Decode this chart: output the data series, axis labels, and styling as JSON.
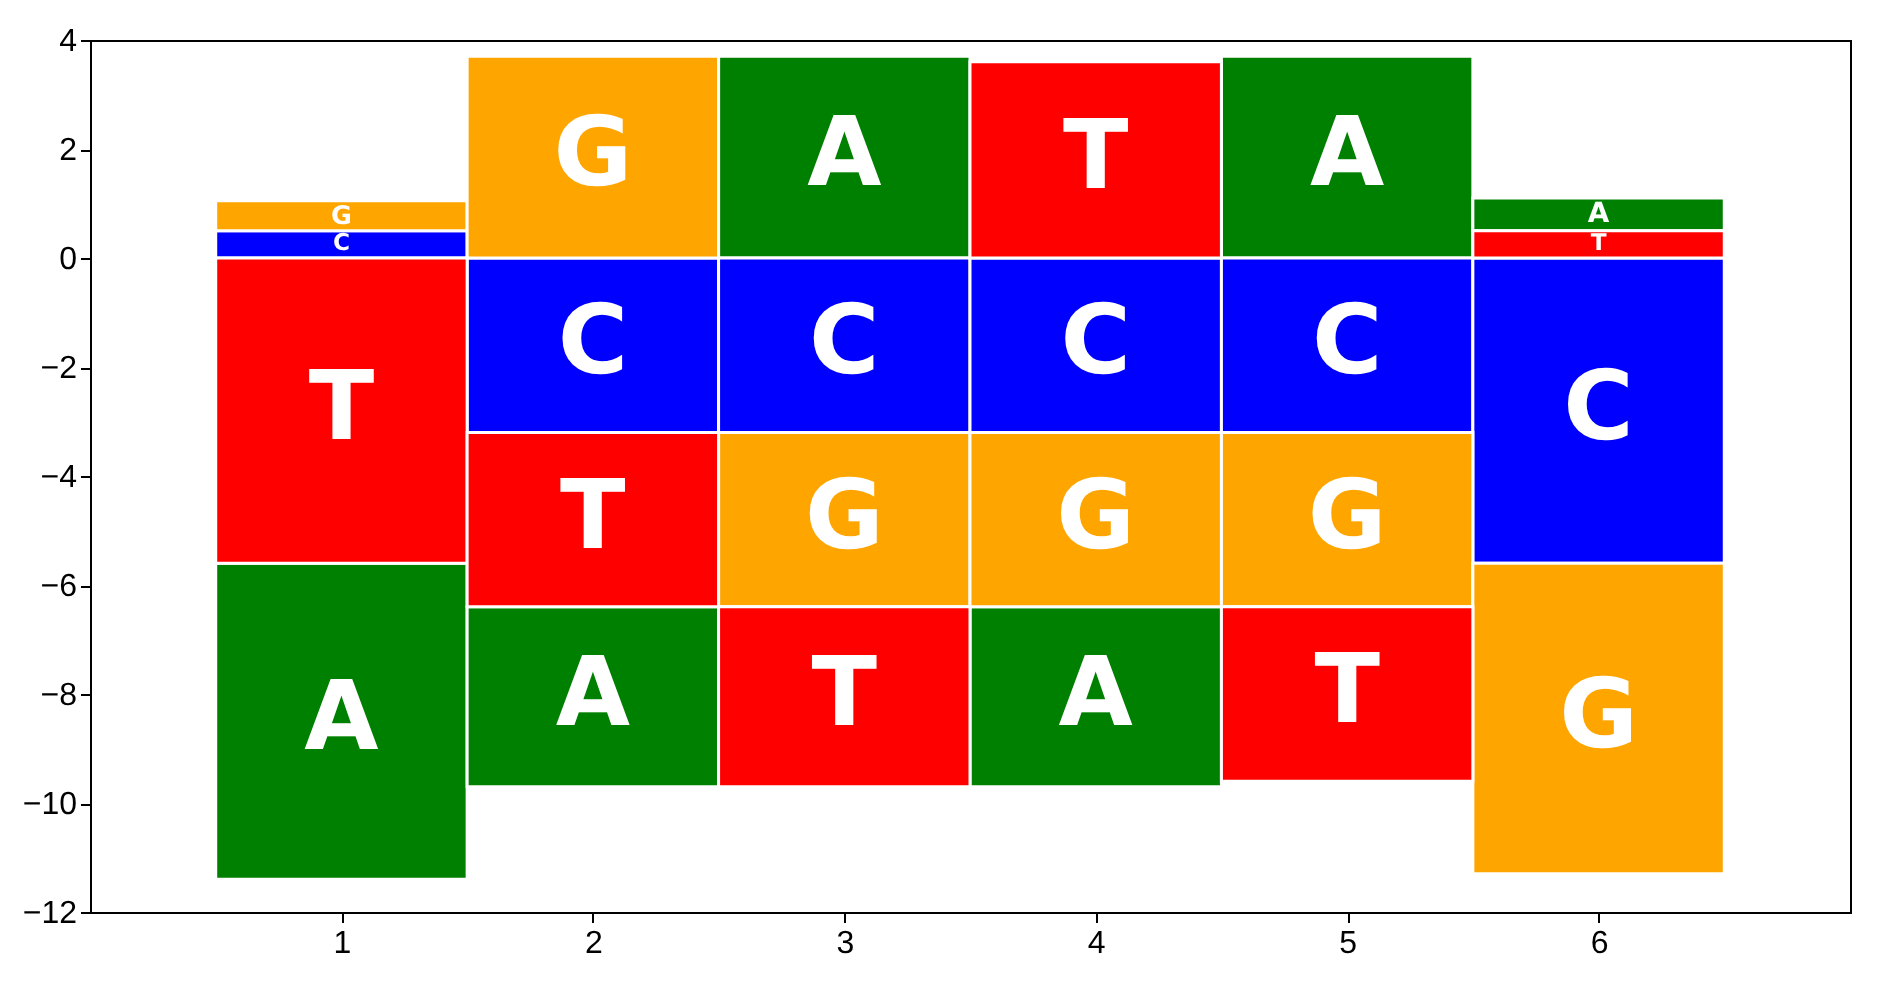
{
  "chart_data": {
    "type": "bar",
    "x": [
      1,
      2,
      3,
      4,
      5,
      6
    ],
    "xlim": [
      0,
      7
    ],
    "xticks": [
      1,
      2,
      3,
      4,
      5,
      6
    ],
    "ylim": [
      -12,
      4
    ],
    "yticks": [
      -12,
      -10,
      -8,
      -6,
      -4,
      -2,
      0,
      2,
      4
    ],
    "grid": false,
    "series": [
      {
        "name": "A",
        "color": "#008000",
        "base": [
          -5.6,
          -6.4,
          0,
          -6.4,
          0,
          0.5
        ],
        "values": [
          -5.8,
          -3.3,
          3.7,
          -3.3,
          3.7,
          0.6
        ]
      },
      {
        "name": "C",
        "color": "#0000ff",
        "base": [
          0,
          0,
          0,
          0,
          0,
          0
        ],
        "values": [
          0.5,
          -3.2,
          -3.2,
          -3.2,
          -3.2,
          -5.6
        ]
      },
      {
        "name": "G",
        "color": "#ffa500",
        "base": [
          0.5,
          0,
          -3.2,
          -3.2,
          -3.2,
          -5.6
        ],
        "values": [
          0.55,
          3.7,
          -3.2,
          -3.2,
          -3.2,
          -5.7
        ]
      },
      {
        "name": "T",
        "color": "#ff0000",
        "base": [
          0,
          -3.2,
          -6.4,
          0,
          -6.4,
          0
        ],
        "values": [
          -5.6,
          -3.2,
          -3.3,
          3.6,
          -3.2,
          0.5
        ]
      }
    ]
  }
}
